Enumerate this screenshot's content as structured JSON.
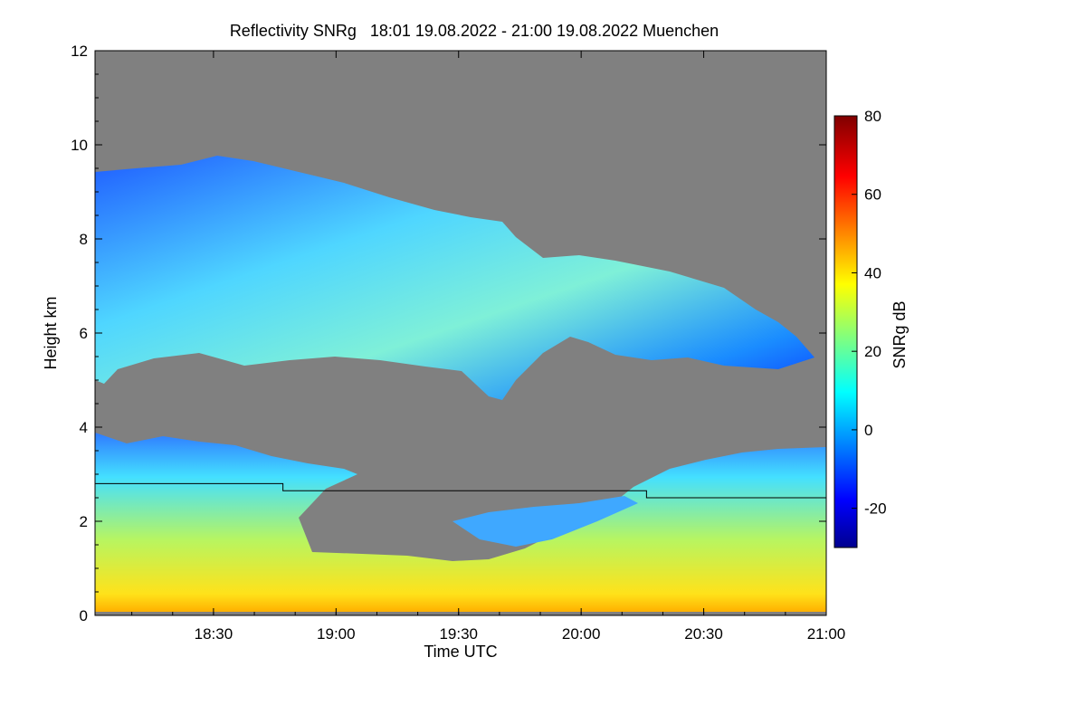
{
  "chart_data": {
    "type": "heatmap",
    "title": "Reflectivity SNRg   18:01 19.08.2022 - 21:00 19.08.2022 Muenchen",
    "xlabel": "Time UTC",
    "ylabel": "Height km",
    "xlim": [
      "18:01",
      "21:00"
    ],
    "ylim": [
      0,
      12
    ],
    "x_ticks": [
      "18:30",
      "19:00",
      "19:30",
      "20:00",
      "20:30",
      "21:00"
    ],
    "y_ticks": [
      "0",
      "2",
      "4",
      "6",
      "8",
      "10",
      "12"
    ],
    "background_color": "#808080",
    "colorbar": {
      "label": "SNRg dB",
      "range": [
        -30,
        80
      ],
      "ticks": [
        "-20",
        "0",
        "20",
        "40",
        "60",
        "80"
      ],
      "colormap": "jet",
      "colors": [
        "#00008f",
        "#0000ff",
        "#00ffff",
        "#ffff00",
        "#ff0000",
        "#800000"
      ]
    },
    "layers": [
      {
        "name": "upper cloud",
        "x_start": "18:01",
        "x_end": "20:57",
        "top_km": [
          9.4,
          9.6,
          8.3,
          6.9,
          5.7
        ],
        "base_km": [
          5.0,
          5.4,
          5.4,
          4.6,
          5.3
        ],
        "snr_db": [
          -10,
          15
        ]
      },
      {
        "name": "lower cloud",
        "x_start": "18:01",
        "x_end": "21:00",
        "top_km": [
          3.7,
          3.4,
          2.5,
          3.0,
          3.5
        ],
        "base_km": [
          0,
          0,
          0,
          0,
          0
        ],
        "snr_db": [
          0,
          40
        ]
      }
    ],
    "boundary_line_km": [
      {
        "x_start": "18:01",
        "x_end": "18:47",
        "height_km": 2.8
      },
      {
        "x_start": "18:47",
        "x_end": "20:16",
        "height_km": 2.65
      },
      {
        "x_start": "20:16",
        "x_end": "21:00",
        "height_km": 2.5
      }
    ]
  }
}
